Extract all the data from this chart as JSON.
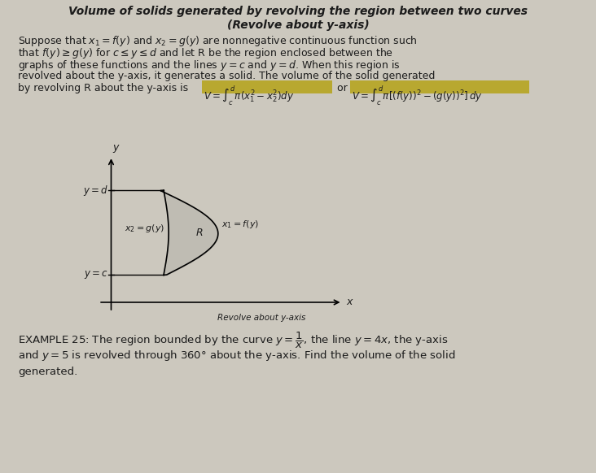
{
  "title_line1": "Volume of solids generated by revolving the region between two curves",
  "title_line2": "(Revolve about y-axis)",
  "body_line1": "Suppose that $x_1=f(y)$ and $x_2=g(y)$ are nonnegative continuous function such",
  "body_line2": "that $f(y)\\geq g(y)$ for $c\\leq y\\leq d$ and let R be the region enclosed between the",
  "body_line3": "graphs of these functions and the lines $y=c$ and $y=d$. When this region is",
  "body_line4": "revolved about the y-axis, it generates a solid. The volume of the solid generated",
  "body_line5a": "by revolving R about the y-axis is ",
  "body_formula1": "$V=\\int_c^d\\pi(x_1^2-x_2^2)dy$",
  "body_or": " or ",
  "body_formula2": "$V=\\int_c^d\\pi[(f(y))^2-(g(y))^2]\\,dy$",
  "label_yd": "$y=d$",
  "label_yc": "$y=c$",
  "label_x2": "$x_2=g(y)$",
  "label_x1": "$x_1=f(y)$",
  "label_R": "$R$",
  "label_x": "$x$",
  "label_y": "$y$",
  "caption": "Revolve about y-axis",
  "example_line1": "EXAMPLE 25: The region bounded by the curve $y=\\dfrac{1}{x}$, the line $y=4x$, the y-axis",
  "example_line2": "and $y=5$ is revolved through 360° about the y-axis. Find the volume of the solid",
  "example_line3": "generated.",
  "bg_color": "#ccc8be",
  "text_color": "#1c1c1c",
  "highlight_color": "#b8a830",
  "diagram_bg": "#ccc8be"
}
